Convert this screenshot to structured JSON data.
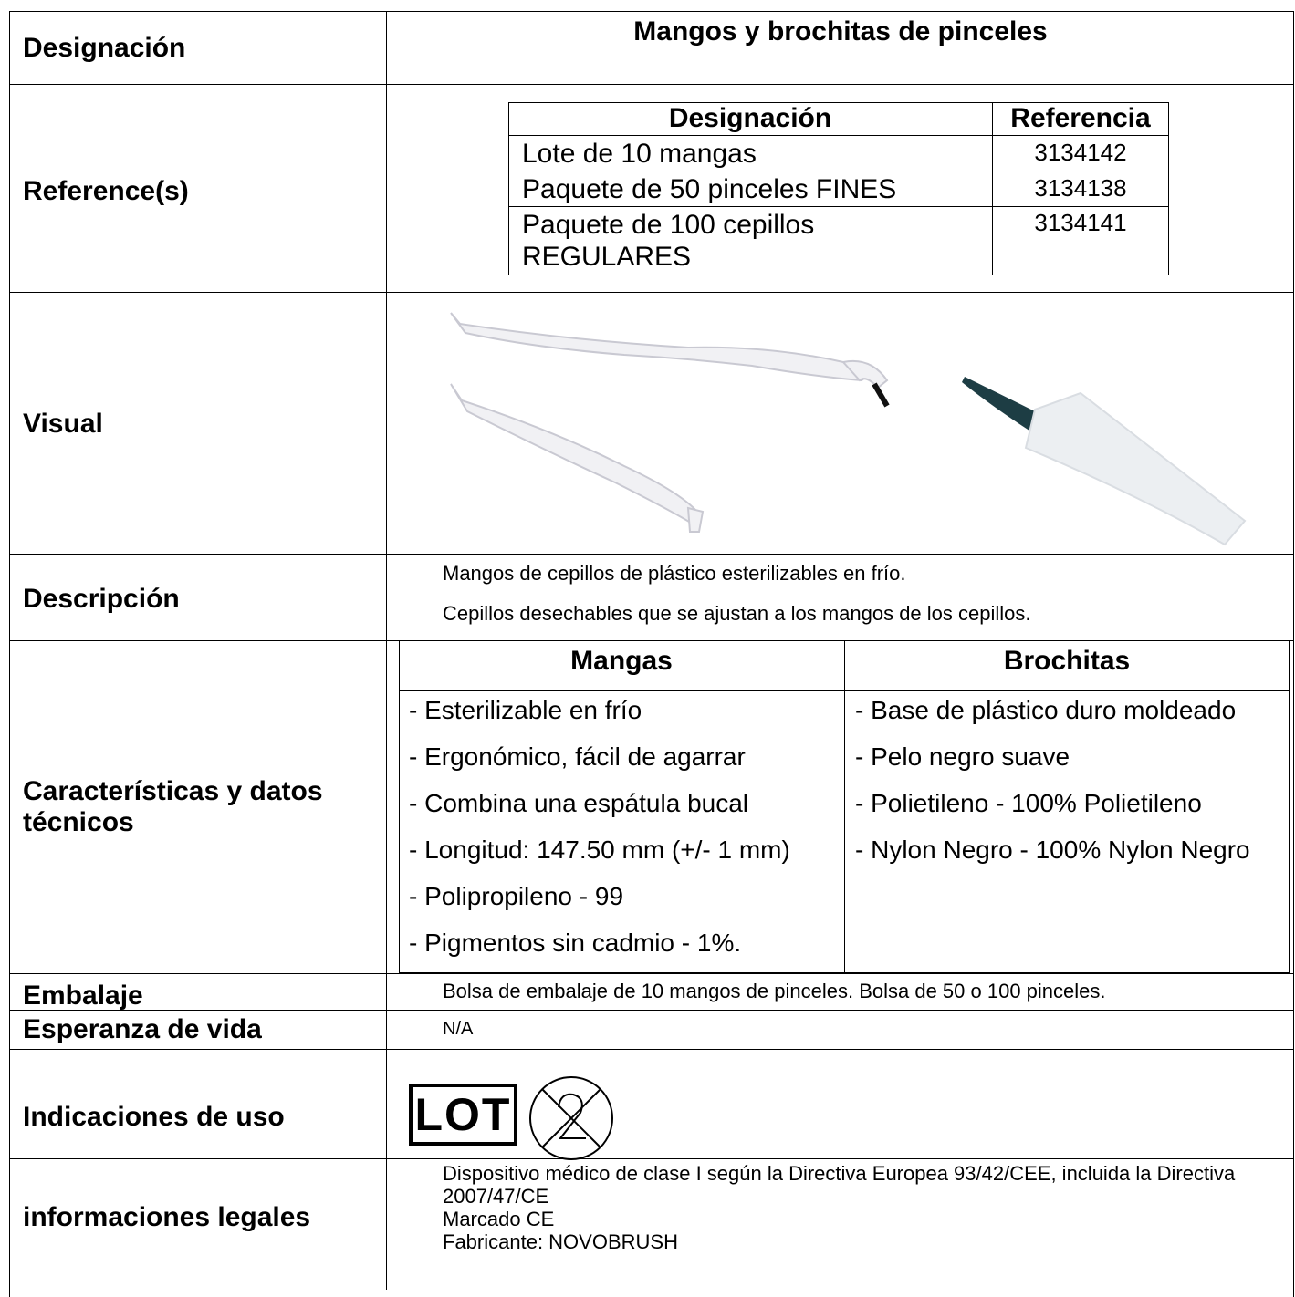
{
  "designation": {
    "label": "Designación",
    "value": "Mangos y brochitas de pinceles"
  },
  "references": {
    "label": "Reference(s)",
    "table": {
      "header": [
        "Designación",
        "Referencia"
      ],
      "rows": [
        [
          "Lote de 10 mangas",
          "3134142"
        ],
        [
          "Paquete de 50 pinceles FINES",
          "3134138"
        ],
        [
          "Paquete de 100 cepillos REGULARES",
          "3134141"
        ]
      ]
    }
  },
  "visual": {
    "label": "Visual"
  },
  "description": {
    "label": "Descripción",
    "lines": [
      "Mangos de cepillos de plástico esterilizables en frío.",
      "Cepillos desechables que se ajustan a los mangos de los cepillos."
    ]
  },
  "characteristics": {
    "label": "Características y datos técnicos",
    "columns": [
      {
        "heading": "Mangas",
        "items": [
          "- Esterilizable en frío",
          "- Ergonómico, fácil de agarrar",
          "- Combina una espátula bucal",
          "- Longitud: 147.50 mm (+/- 1 mm)",
          "- Polipropileno - 99",
          "- Pigmentos sin cadmio - 1%."
        ]
      },
      {
        "heading": "Brochitas",
        "items": [
          "- Base de plástico duro moldeado",
          "- Pelo negro suave",
          "- Polietileno - 100% Polietileno",
          "- Nylon Negro - 100% Nylon Negro"
        ]
      }
    ]
  },
  "packaging": {
    "label": "Embalaje",
    "text": "Bolsa de embalaje de 10 mangos de pinceles. Bolsa de 50 o 100 pinceles."
  },
  "lifespan": {
    "label": "Esperanza de vida",
    "text": "N/A"
  },
  "indications": {
    "label": "Indicaciones de uso",
    "symbol": "LOT"
  },
  "legal": {
    "label": "informaciones legales",
    "lines": [
      "Dispositivo médico de clase I según la Directiva Europea 93/42/CEE, incluida la Directiva 2007/47/CE",
      "Marcado CE",
      "Fabricante: NOVOBRUSH"
    ]
  }
}
